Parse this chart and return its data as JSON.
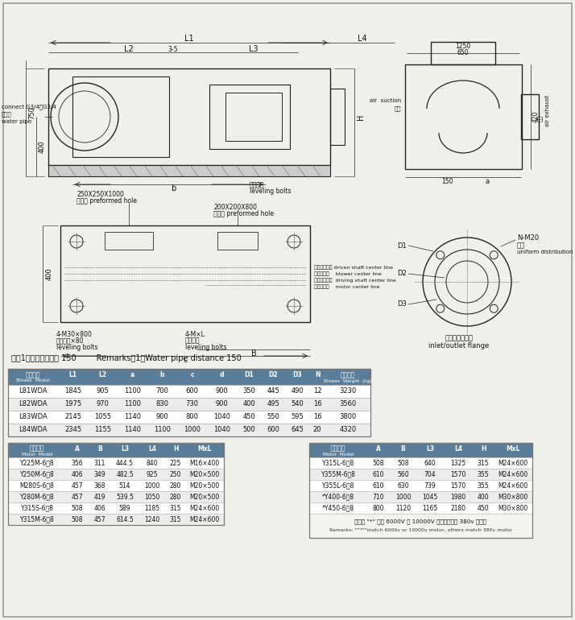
{
  "bg_color": "#f0f0eb",
  "remark_text": "注：1、输水管间距为 150        Remarks：1、Water pipe distance 150",
  "blower_table": {
    "header_cn": [
      "风机型号",
      "L1",
      "L2",
      "a",
      "b",
      "c",
      "d",
      "D1",
      "D2",
      "D3",
      "N",
      "主机重量"
    ],
    "header_en": [
      "Blower  Model",
      "",
      "",
      "",
      "",
      "",
      "",
      "",
      "",
      "",
      "",
      "Blower  Weight  (kg)"
    ],
    "rows": [
      [
        "L81WDA",
        "1845",
        "905",
        "1100",
        "700",
        "600",
        "900",
        "350",
        "445",
        "490",
        "12",
        "3230"
      ],
      [
        "L82WDA",
        "1975",
        "970",
        "1100",
        "830",
        "730",
        "900",
        "400",
        "495",
        "540",
        "16",
        "3560"
      ],
      [
        "L83WDA",
        "2145",
        "1055",
        "1140",
        "900",
        "800",
        "1040",
        "450",
        "550",
        "595",
        "16",
        "3800"
      ],
      [
        "L84WDA",
        "2345",
        "1155",
        "1140",
        "1100",
        "1000",
        "1040",
        "500",
        "600",
        "645",
        "20",
        "4320"
      ]
    ],
    "header_color": "#5a7d9a",
    "border_color": "#aaaaaa"
  },
  "motor_table_left": {
    "header_cn": [
      "电机型号",
      "A",
      "B",
      "L3",
      "L4",
      "H",
      "MxL"
    ],
    "header_en": [
      "Motor  Model",
      "",
      "",
      "",
      "",
      "",
      ""
    ],
    "rows": [
      [
        "Y225M-6、8",
        "356",
        "311",
        "444.5",
        "840",
        "225",
        "M16×400"
      ],
      [
        "Y250M-6、8",
        "406",
        "349",
        "482.5",
        "925",
        "250",
        "M20×500"
      ],
      [
        "M280S-6、8",
        "457",
        "368",
        "514",
        "1000",
        "280",
        "M20×500"
      ],
      [
        "Y280M-6、8",
        "457",
        "419",
        "539.5",
        "1050",
        "280",
        "M20×500"
      ],
      [
        "Y315S-6、8",
        "508",
        "406",
        "589",
        "1185",
        "315",
        "M24×600"
      ],
      [
        "Y315M-6、8",
        "508",
        "457",
        "614.5",
        "1240",
        "315",
        "M24×600"
      ]
    ],
    "header_color": "#5a7d9a"
  },
  "motor_table_right": {
    "header_cn": [
      "电机型号",
      "A",
      "B",
      "L3",
      "L4",
      "H",
      "MxL"
    ],
    "header_en": [
      "Motor  Model",
      "",
      "",
      "",
      "",
      "",
      ""
    ],
    "rows": [
      [
        "Y315L-6、8",
        "508",
        "508",
        "640",
        "1325",
        "315",
        "M24×600"
      ],
      [
        "Y355M-6、8",
        "610",
        "560",
        "704",
        "1570",
        "355",
        "M24×600"
      ],
      [
        "Y355L-6、8",
        "610",
        "630",
        "739",
        "1570",
        "355",
        "M24×600"
      ],
      [
        "*Y400-6、8",
        "710",
        "1000",
        "1045",
        "1980",
        "400",
        "M30×800"
      ],
      [
        "*Y450-6、8",
        "800",
        "1120",
        "1165",
        "2180",
        "450",
        "M30×800"
      ]
    ],
    "note_cn": "注：带 \"*\" 适用 6000V 或 10000V 电机，其余为 380v 电机。",
    "note_en": "Remarks: \"\"*\"\"match 6000v or 10000v motor, others match 380v motor",
    "header_color": "#5a7d9a"
  }
}
